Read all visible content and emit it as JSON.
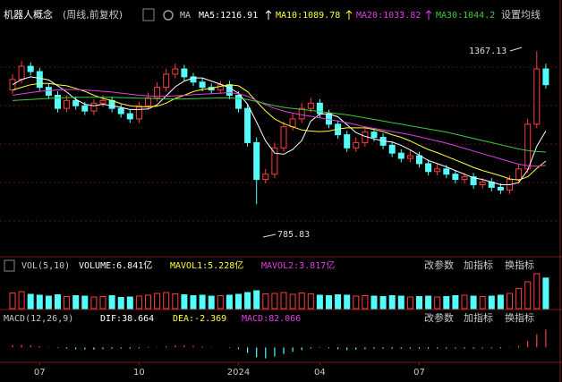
{
  "chart_data": [
    {
      "type": "candlestick",
      "title": "机器人概念",
      "subtitle": "(周线,前复权)",
      "indicator": "MA",
      "ma_labels": [
        "MA5:1216.91",
        "MA10:1089.78",
        "MA20:1033.82",
        "MA30:1044.2"
      ],
      "settings_label": "设置均线",
      "annotations": [
        "1367.13",
        "785.83"
      ],
      "up_color": "#ff3c3c",
      "down_color": "#54fcfc",
      "categories": [
        null,
        null,
        null,
        "07",
        null,
        null,
        null,
        null,
        null,
        null,
        null,
        null,
        null,
        null,
        "10",
        null,
        null,
        null,
        null,
        null,
        null,
        null,
        null,
        null,
        null,
        "2024",
        null,
        null,
        null,
        null,
        null,
        null,
        null,
        null,
        "04",
        null,
        null,
        null,
        null,
        null,
        null,
        null,
        null,
        null,
        null,
        "07",
        null,
        null,
        null,
        null,
        null,
        null,
        null,
        null,
        null,
        null,
        null,
        null,
        null,
        null
      ],
      "opens": [
        1220,
        1260,
        1310,
        1290,
        1230,
        1200,
        1150,
        1180,
        1160,
        1140,
        1170,
        1180,
        1150,
        1130,
        1110,
        1160,
        1190,
        1230,
        1280,
        1300,
        1270,
        1250,
        1230,
        1220,
        1240,
        1200,
        1150,
        1020,
        880,
        900,
        1000,
        1080,
        1110,
        1150,
        1170,
        1130,
        1090,
        1050,
        1000,
        1020,
        1060,
        1040,
        1010,
        980,
        960,
        970,
        940,
        910,
        920,
        900,
        880,
        890,
        860,
        870,
        850,
        840,
        880,
        920,
        1090,
        1300
      ],
      "highs": [
        1280,
        1330,
        1325,
        1305,
        1245,
        1215,
        1200,
        1195,
        1175,
        1185,
        1200,
        1195,
        1165,
        1145,
        1175,
        1210,
        1250,
        1300,
        1320,
        1315,
        1285,
        1265,
        1245,
        1255,
        1255,
        1215,
        1165,
        1040,
        920,
        1020,
        1100,
        1130,
        1170,
        1190,
        1185,
        1145,
        1105,
        1065,
        1040,
        1080,
        1075,
        1055,
        1025,
        995,
        990,
        985,
        955,
        940,
        935,
        915,
        905,
        905,
        885,
        885,
        865,
        895,
        940,
        1110,
        1367.13,
        1320
      ],
      "lows": [
        1205,
        1245,
        1275,
        1215,
        1185,
        1135,
        1135,
        1145,
        1125,
        1125,
        1155,
        1135,
        1115,
        1095,
        1095,
        1145,
        1175,
        1215,
        1265,
        1255,
        1235,
        1215,
        1205,
        1205,
        1185,
        1135,
        1005,
        785.83,
        865,
        885,
        985,
        1065,
        1095,
        1135,
        1115,
        1075,
        1035,
        985,
        985,
        1005,
        1025,
        995,
        965,
        945,
        945,
        925,
        895,
        895,
        885,
        865,
        865,
        845,
        845,
        835,
        825,
        825,
        865,
        905,
        1075,
        1225
      ],
      "closes": [
        1260,
        1310,
        1290,
        1230,
        1200,
        1150,
        1180,
        1160,
        1140,
        1170,
        1180,
        1150,
        1130,
        1110,
        1160,
        1190,
        1230,
        1280,
        1300,
        1270,
        1250,
        1230,
        1220,
        1240,
        1200,
        1150,
        1020,
        880,
        900,
        1000,
        1080,
        1110,
        1150,
        1170,
        1130,
        1090,
        1050,
        1000,
        1020,
        1060,
        1040,
        1010,
        980,
        960,
        970,
        940,
        910,
        920,
        900,
        880,
        890,
        860,
        870,
        850,
        840,
        880,
        920,
        1090,
        1300,
        1240
      ],
      "ylim": [
        610,
        1460
      ],
      "lines": [
        {
          "color": "#ffffff",
          "values": [
            1240,
            1260,
            1270,
            1265,
            1258,
            1236,
            1212,
            1184,
            1166,
            1160,
            1166,
            1160,
            1154,
            1146,
            1146,
            1148,
            1164,
            1198,
            1232,
            1254,
            1266,
            1266,
            1254,
            1242,
            1228,
            1208,
            1166,
            1098,
            1026,
            980,
            976,
            994,
            1028,
            1102,
            1128,
            1130,
            1118,
            1088,
            1058,
            1044,
            1034,
            1026,
            1022,
            1010,
            992,
            972,
            952,
            940,
            928,
            914,
            900,
            886,
            880,
            870,
            860,
            860,
            868,
            916,
            1006,
            1064
          ]
        },
        {
          "color": "#ffff3c",
          "values": [
            1220,
            1230,
            1240,
            1245,
            1245,
            1240,
            1236,
            1226,
            1215,
            1200,
            1188,
            1180,
            1168,
            1160,
            1156,
            1156,
            1158,
            1170,
            1188,
            1200,
            1214,
            1222,
            1226,
            1234,
            1240,
            1236,
            1214,
            1176,
            1140,
            1110,
            1092,
            1080,
            1068,
            1064,
            1062,
            1064,
            1072,
            1076,
            1076,
            1076,
            1070,
            1062,
            1050,
            1040,
            1026,
            1010,
            994,
            982,
            968,
            954,
            940,
            926,
            914,
            904,
            894,
            882,
            878,
            890,
            922,
            950
          ]
        },
        {
          "color": "#e040e0",
          "values": [
            1200,
            1205,
            1210,
            1215,
            1218,
            1220,
            1222,
            1222,
            1220,
            1218,
            1215,
            1212,
            1208,
            1204,
            1200,
            1198,
            1196,
            1196,
            1198,
            1200,
            1202,
            1204,
            1206,
            1208,
            1210,
            1206,
            1196,
            1180,
            1164,
            1150,
            1140,
            1132,
            1126,
            1120,
            1114,
            1108,
            1102,
            1096,
            1088,
            1080,
            1074,
            1068,
            1062,
            1056,
            1050,
            1042,
            1034,
            1026,
            1018,
            1008,
            998,
            988,
            978,
            968,
            958,
            948,
            938,
            932,
            930,
            934
          ]
        },
        {
          "color": "#3ccc3c",
          "values": [
            1180,
            1182,
            1184,
            1186,
            1188,
            1190,
            1191,
            1192,
            1192,
            1192,
            1192,
            1192,
            1191,
            1190,
            1189,
            1188,
            1187,
            1186,
            1186,
            1186,
            1187,
            1188,
            1189,
            1190,
            1190,
            1188,
            1184,
            1176,
            1168,
            1160,
            1154,
            1150,
            1146,
            1142,
            1138,
            1134,
            1130,
            1126,
            1120,
            1114,
            1108,
            1102,
            1096,
            1090,
            1084,
            1078,
            1072,
            1066,
            1060,
            1052,
            1044,
            1036,
            1028,
            1020,
            1012,
            1004,
            996,
            990,
            986,
            984
          ]
        }
      ]
    },
    {
      "type": "volume",
      "header": [
        "VOL(5,10)",
        "VOLUME:6.841亿",
        "MAVOL1:5.228亿",
        "MAVOL2:3.817亿"
      ],
      "buttons": [
        "改参数",
        "加指标",
        "换指标"
      ],
      "values": [
        3.5,
        3.8,
        3.2,
        3.0,
        2.8,
        3.1,
        2.7,
        2.9,
        2.8,
        2.6,
        2.7,
        2.9,
        2.5,
        2.6,
        2.8,
        3.0,
        3.4,
        3.6,
        3.3,
        3.1,
        2.9,
        3.0,
        2.8,
        2.9,
        3.0,
        3.2,
        3.6,
        4.0,
        3.3,
        3.4,
        3.6,
        3.2,
        3.5,
        3.3,
        3.0,
        2.9,
        3.1,
        3.0,
        2.8,
        2.9,
        2.8,
        2.7,
        2.9,
        2.8,
        2.6,
        2.7,
        2.8,
        2.6,
        2.7,
        2.9,
        3.0,
        2.8,
        2.7,
        2.8,
        3.0,
        3.4,
        4.5,
        6.0,
        7.8,
        6.841
      ],
      "ylim": [
        0,
        8
      ]
    },
    {
      "type": "macd",
      "header": [
        "MACD(12,26,9)",
        "DIF:38.664",
        "DEA:-2.369",
        "MACD:82.066"
      ],
      "buttons": [
        "改参数",
        "加指标",
        "换指标"
      ],
      "values": [
        10,
        12,
        10,
        6,
        2,
        -2,
        -5,
        -8,
        -9,
        -10,
        -8,
        -6,
        -5,
        -6,
        -4,
        -2,
        2,
        6,
        9,
        10,
        8,
        5,
        2,
        0,
        -2,
        -8,
        -25,
        -45,
        -50,
        -42,
        -30,
        -20,
        -12,
        -5,
        -2,
        -4,
        -8,
        -12,
        -10,
        -8,
        -6,
        -6,
        -6,
        -6,
        -5,
        -6,
        -6,
        -5,
        -5,
        -5,
        -5,
        -5,
        -4,
        -4,
        -4,
        -1,
        8,
        30,
        60,
        82.066
      ],
      "ylim": [
        -60,
        100
      ]
    }
  ]
}
